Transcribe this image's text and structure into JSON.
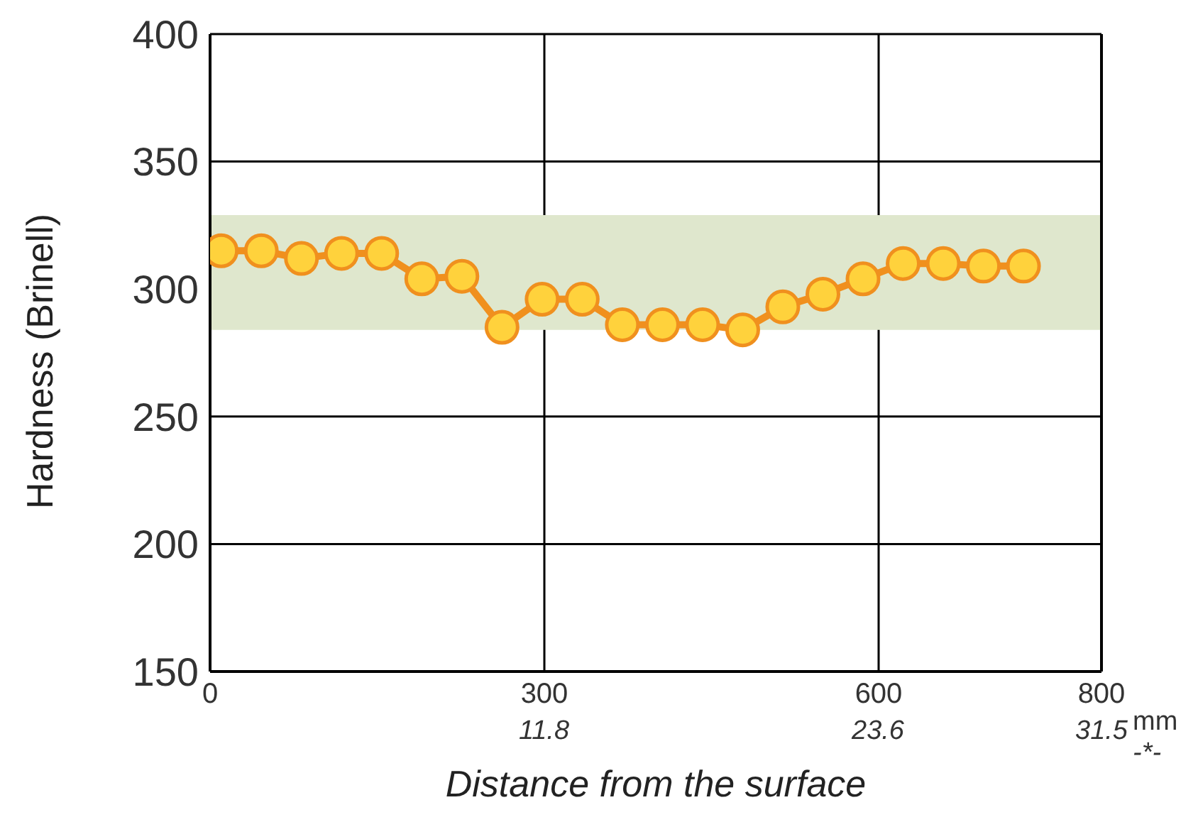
{
  "chart_data": {
    "type": "line",
    "xlabel": "Distance from the surface",
    "ylabel": "Hardness (Brinell)",
    "x": [
      10,
      46,
      82,
      118,
      154,
      190,
      226,
      262,
      298,
      334,
      370,
      406,
      442,
      478,
      514,
      550,
      586,
      622,
      658,
      694,
      730
    ],
    "series": [
      {
        "color": "#f0901e",
        "values": [
          315,
          315,
          312,
          314,
          314,
          304,
          305,
          285,
          296,
          296,
          286,
          286,
          286,
          284,
          293,
          298,
          304,
          310,
          310,
          309,
          309
        ]
      }
    ],
    "xlim": [
      0,
      800
    ],
    "xticks": [
      0,
      300,
      600,
      800
    ],
    "x2lim": [
      0,
      31.5
    ],
    "x2ticks": [
      11.8,
      23.6,
      31.5
    ],
    "ylim": [
      150,
      400
    ],
    "yticks": [
      150,
      200,
      250,
      300,
      350,
      400
    ],
    "bands": [
      {
        "axis": "y",
        "from": 284,
        "to": 329,
        "color": "#dfe7cd"
      }
    ],
    "annotations": [
      "mm",
      "-*-"
    ],
    "grid": true,
    "marker": "circle",
    "line_style": "solid"
  }
}
